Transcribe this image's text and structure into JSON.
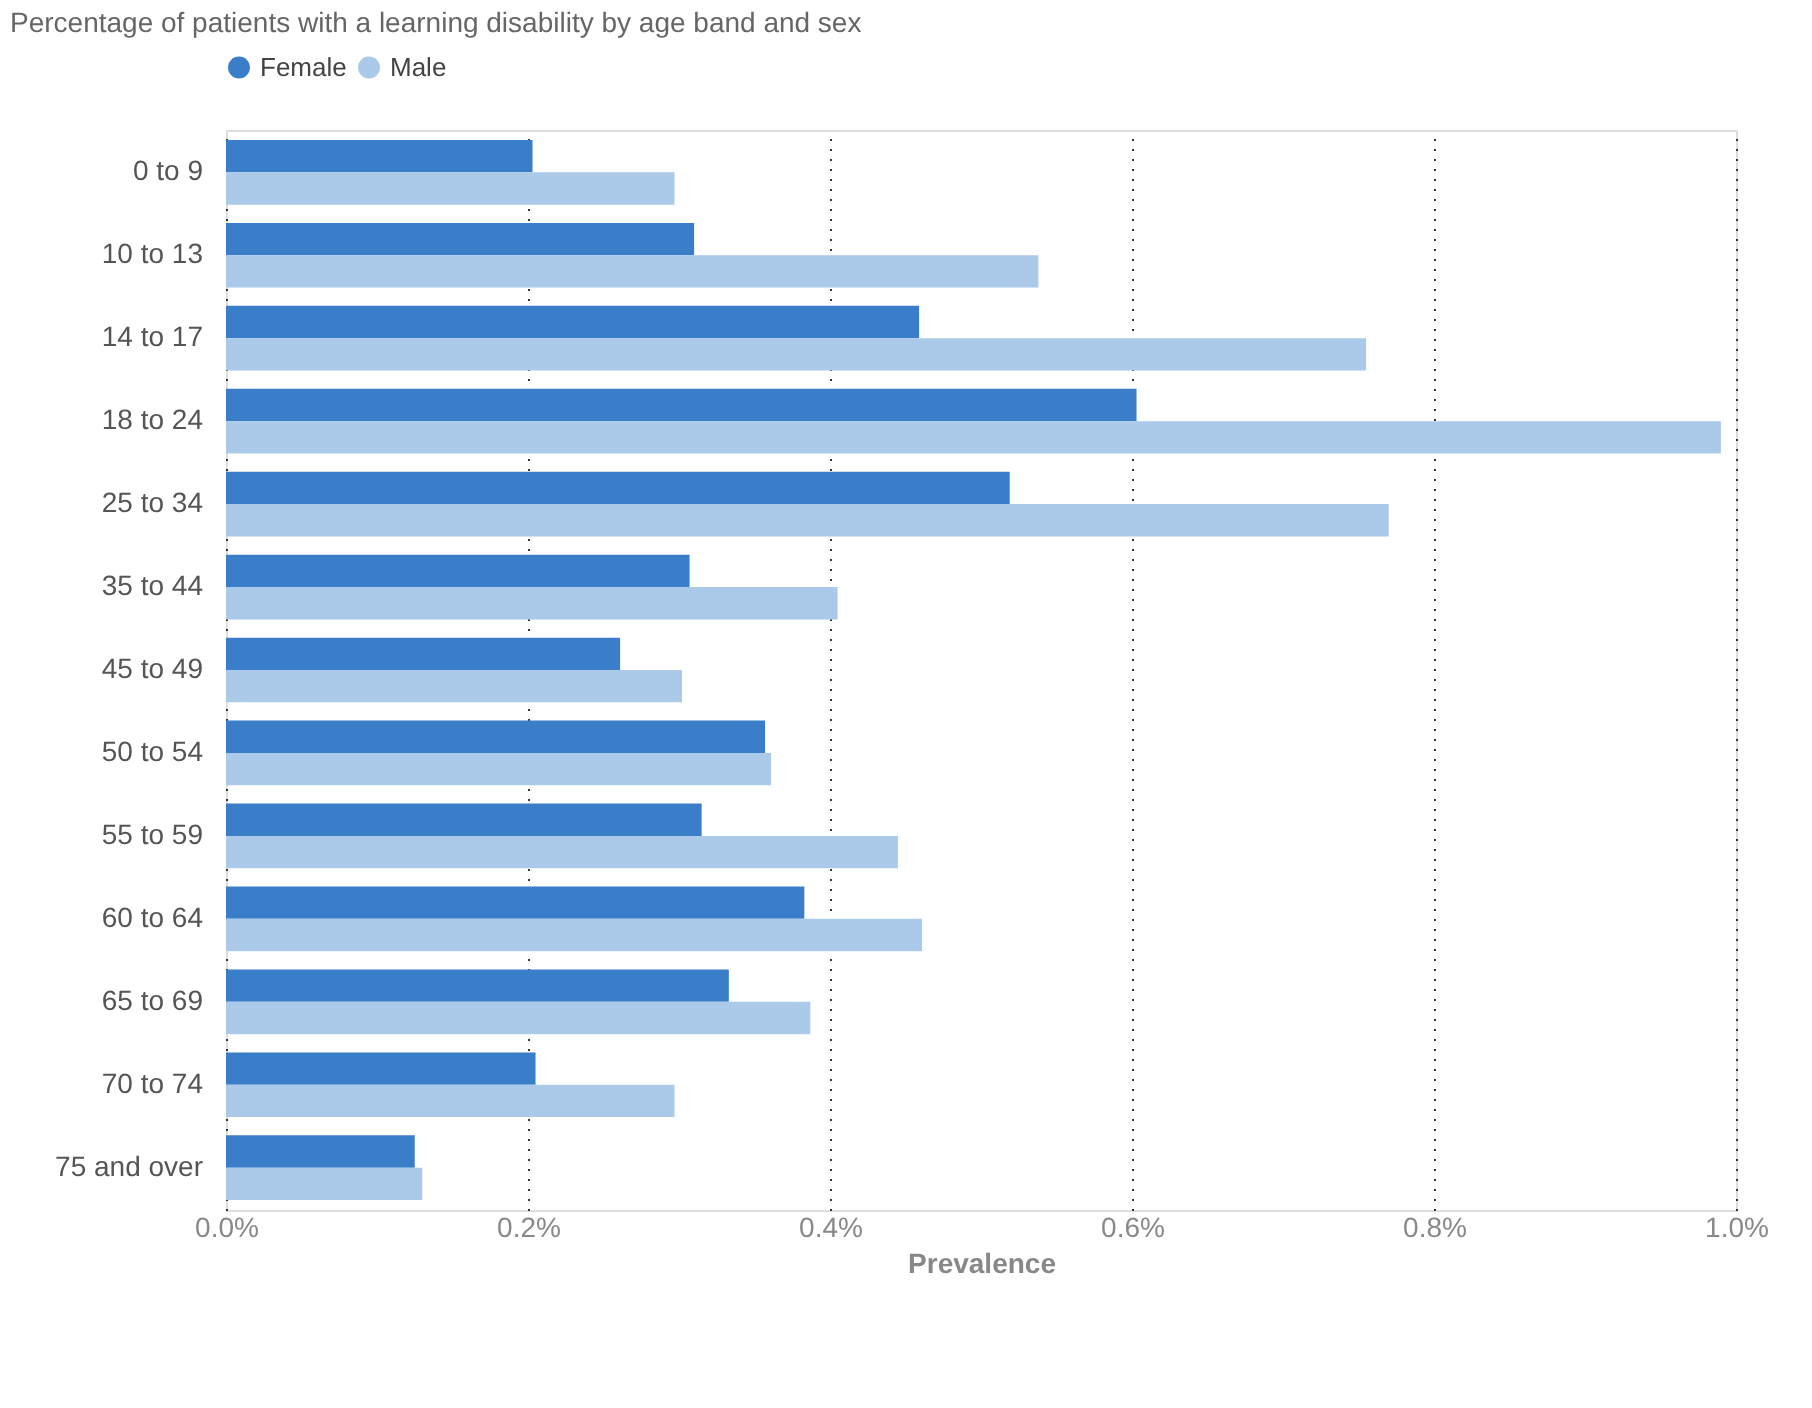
{
  "chart_data": {
    "type": "bar",
    "orientation": "horizontal",
    "title": "Percentage of patients with a learning disability by age band and sex",
    "xlabel": "Prevalence",
    "categories": [
      "0 to 9",
      "10 to 13",
      "14 to 17",
      "18 to 24",
      "25 to 34",
      "35 to 44",
      "45 to 49",
      "50 to 54",
      "55 to 59",
      "60 to 64",
      "65 to 69",
      "70 to 74",
      "75 and over"
    ],
    "series": [
      {
        "name": "Female",
        "color": "#3a7dc8",
        "values": [
          0.203,
          0.31,
          0.459,
          0.603,
          0.519,
          0.307,
          0.261,
          0.357,
          0.315,
          0.383,
          0.333,
          0.205,
          0.125
        ]
      },
      {
        "name": "Male",
        "color": "#abc9e9",
        "values": [
          0.297,
          0.538,
          0.755,
          0.99,
          0.77,
          0.405,
          0.302,
          0.361,
          0.445,
          0.461,
          0.387,
          0.297,
          0.13
        ]
      }
    ],
    "xlim": [
      0,
      1.0
    ],
    "xticks": [
      {
        "value": 0,
        "label": "0.0%"
      },
      {
        "value": 0.2,
        "label": "0.2%"
      },
      {
        "value": 0.4,
        "label": "0.4%"
      },
      {
        "value": 0.6,
        "label": "0.6%"
      },
      {
        "value": 0.8,
        "label": "0.8%"
      },
      {
        "value": 1.0,
        "label": "1.0%"
      }
    ],
    "grid": "x",
    "legend": "top left",
    "marker": "circle"
  }
}
